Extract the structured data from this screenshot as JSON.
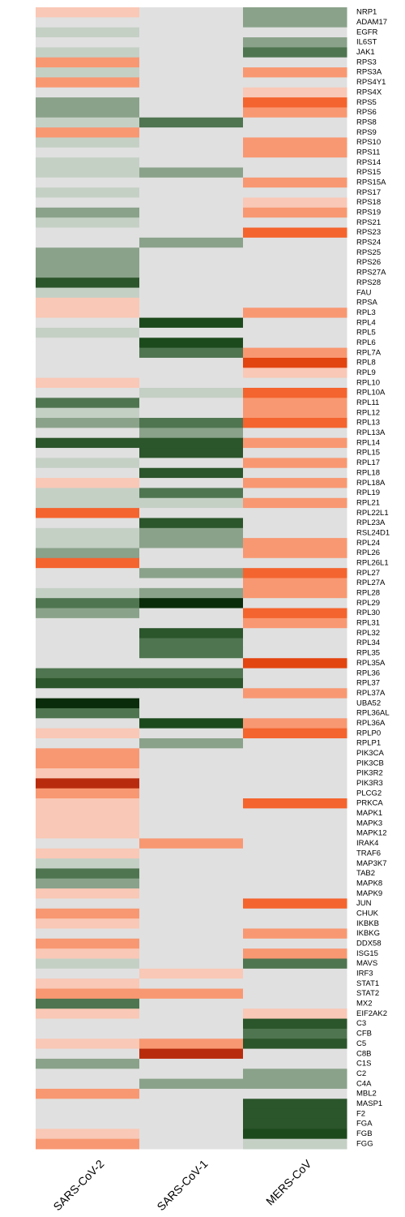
{
  "chart_data": {
    "type": "heatmap",
    "columns": [
      "SARS-CoV-2",
      "SARS-CoV-1",
      "MERS-CoV"
    ],
    "levels": {
      "-5": "#0a2c0a",
      "-4": "#1d4a1d",
      "-3": "#2b552b",
      "-2": "#4f7550",
      "-1": "#8aa28a",
      "-0.5": "#c5d0c5",
      "0": "#e0e0e0",
      "0.5": "#f9c8b6",
      "1": "#f89872",
      "2": "#f4642e",
      "3": "#e24510",
      "4": "#b82c0d"
    },
    "rows": [
      {
        "gene": "NRP1",
        "values": [
          0.5,
          0,
          -1
        ]
      },
      {
        "gene": "ADAM17",
        "values": [
          0,
          0,
          -1
        ]
      },
      {
        "gene": "EGFR",
        "values": [
          -0.5,
          0,
          0
        ]
      },
      {
        "gene": "IL6ST",
        "values": [
          0,
          0,
          -1
        ]
      },
      {
        "gene": "JAK1",
        "values": [
          -0.5,
          0,
          -2
        ]
      },
      {
        "gene": "RPS3",
        "values": [
          1,
          0,
          0
        ]
      },
      {
        "gene": "RPS3A",
        "values": [
          -0.5,
          0,
          1
        ]
      },
      {
        "gene": "RPS4Y1",
        "values": [
          1,
          0,
          0
        ]
      },
      {
        "gene": "RPS4X",
        "values": [
          0,
          0,
          0.5
        ]
      },
      {
        "gene": "RPS5",
        "values": [
          -1,
          0,
          2
        ]
      },
      {
        "gene": "RPS6",
        "values": [
          -1,
          0,
          1
        ]
      },
      {
        "gene": "RPS8",
        "values": [
          -0.5,
          -2,
          0
        ]
      },
      {
        "gene": "RPS9",
        "values": [
          1,
          0,
          0
        ]
      },
      {
        "gene": "RPS10",
        "values": [
          -0.5,
          0,
          1
        ]
      },
      {
        "gene": "RPS11",
        "values": [
          0,
          0,
          1
        ]
      },
      {
        "gene": "RPS14",
        "values": [
          -0.5,
          0,
          0
        ]
      },
      {
        "gene": "RPS15",
        "values": [
          -0.5,
          -1,
          0
        ]
      },
      {
        "gene": "RPS15A",
        "values": [
          0,
          0,
          1
        ]
      },
      {
        "gene": "RPS17",
        "values": [
          -0.5,
          0,
          0
        ]
      },
      {
        "gene": "RPS18",
        "values": [
          0,
          0,
          0.5
        ]
      },
      {
        "gene": "RPS19",
        "values": [
          -1,
          0,
          1
        ]
      },
      {
        "gene": "RPS21",
        "values": [
          -0.5,
          0,
          0
        ]
      },
      {
        "gene": "RPS23",
        "values": [
          0,
          0,
          2
        ]
      },
      {
        "gene": "RPS24",
        "values": [
          0,
          -1,
          0
        ]
      },
      {
        "gene": "RPS25",
        "values": [
          -1,
          0,
          0
        ]
      },
      {
        "gene": "RPS26",
        "values": [
          -1,
          0,
          0
        ]
      },
      {
        "gene": "RPS27A",
        "values": [
          -1,
          0,
          0
        ]
      },
      {
        "gene": "RPS28",
        "values": [
          -3,
          0,
          0
        ]
      },
      {
        "gene": "FAU",
        "values": [
          -0.5,
          0,
          0
        ]
      },
      {
        "gene": "RPSA",
        "values": [
          0.5,
          0,
          0
        ]
      },
      {
        "gene": "RPL3",
        "values": [
          0.5,
          0,
          1
        ]
      },
      {
        "gene": "RPL4",
        "values": [
          0,
          -4,
          0
        ]
      },
      {
        "gene": "RPL5",
        "values": [
          -0.5,
          0,
          0
        ]
      },
      {
        "gene": "RPL6",
        "values": [
          0,
          -4,
          0
        ]
      },
      {
        "gene": "RPL7A",
        "values": [
          0,
          -2,
          1
        ]
      },
      {
        "gene": "RPL8",
        "values": [
          0,
          0,
          3
        ]
      },
      {
        "gene": "RPL9",
        "values": [
          0,
          0,
          0.5
        ]
      },
      {
        "gene": "RPL10",
        "values": [
          0.5,
          0,
          0
        ]
      },
      {
        "gene": "RPL10A",
        "values": [
          0,
          -0.5,
          2
        ]
      },
      {
        "gene": "RPL11",
        "values": [
          -2,
          0,
          1
        ]
      },
      {
        "gene": "RPL12",
        "values": [
          -0.5,
          0,
          1
        ]
      },
      {
        "gene": "RPL13",
        "values": [
          -1,
          -2,
          2
        ]
      },
      {
        "gene": "RPL13A",
        "values": [
          0,
          -1,
          0
        ]
      },
      {
        "gene": "RPL14",
        "values": [
          -3,
          -3,
          1
        ]
      },
      {
        "gene": "RPL15",
        "values": [
          0,
          -3,
          0
        ]
      },
      {
        "gene": "RPL17",
        "values": [
          -0.5,
          0,
          1
        ]
      },
      {
        "gene": "RPL18",
        "values": [
          0,
          -3,
          0
        ]
      },
      {
        "gene": "RPL18A",
        "values": [
          0.5,
          0,
          1
        ]
      },
      {
        "gene": "RPL19",
        "values": [
          -0.5,
          -2,
          0
        ]
      },
      {
        "gene": "RPL21",
        "values": [
          -0.5,
          -0.5,
          1
        ]
      },
      {
        "gene": "RPL22L1",
        "values": [
          2,
          0,
          0
        ]
      },
      {
        "gene": "RPL23A",
        "values": [
          0,
          -3,
          0
        ]
      },
      {
        "gene": "RSL24D1",
        "values": [
          -0.5,
          -1,
          0
        ]
      },
      {
        "gene": "RPL24",
        "values": [
          -0.5,
          -1,
          1
        ]
      },
      {
        "gene": "RPL26",
        "values": [
          -1,
          0,
          1
        ]
      },
      {
        "gene": "RPL26L1",
        "values": [
          2,
          0,
          0
        ]
      },
      {
        "gene": "RPL27",
        "values": [
          0,
          -1,
          2
        ]
      },
      {
        "gene": "RPL27A",
        "values": [
          0,
          0,
          1
        ]
      },
      {
        "gene": "RPL28",
        "values": [
          -0.5,
          -1,
          1
        ]
      },
      {
        "gene": "RPL29",
        "values": [
          -2,
          -5,
          0
        ]
      },
      {
        "gene": "RPL30",
        "values": [
          -1,
          0,
          2
        ]
      },
      {
        "gene": "RPL31",
        "values": [
          0,
          0,
          1
        ]
      },
      {
        "gene": "RPL32",
        "values": [
          0,
          -3,
          0
        ]
      },
      {
        "gene": "RPL34",
        "values": [
          0,
          -2,
          0
        ]
      },
      {
        "gene": "RPL35",
        "values": [
          0,
          -2,
          0
        ]
      },
      {
        "gene": "RPL35A",
        "values": [
          0,
          0,
          3
        ]
      },
      {
        "gene": "RPL36",
        "values": [
          -2,
          -2,
          0
        ]
      },
      {
        "gene": "RPL37",
        "values": [
          -3,
          -3,
          0
        ]
      },
      {
        "gene": "RPL37A",
        "values": [
          0,
          0,
          1
        ]
      },
      {
        "gene": "UBA52",
        "values": [
          -5,
          0,
          0
        ]
      },
      {
        "gene": "RPL36AL",
        "values": [
          -2,
          0,
          0
        ]
      },
      {
        "gene": "RPL36A",
        "values": [
          0,
          -4,
          1
        ]
      },
      {
        "gene": "RPLP0",
        "values": [
          0.5,
          0,
          2
        ]
      },
      {
        "gene": "RPLP1",
        "values": [
          0,
          -1,
          0
        ]
      },
      {
        "gene": "PIK3CA",
        "values": [
          1,
          0,
          0
        ]
      },
      {
        "gene": "PIK3CB",
        "values": [
          1,
          0,
          0
        ]
      },
      {
        "gene": "PIK3R2",
        "values": [
          0.5,
          0,
          0
        ]
      },
      {
        "gene": "PIK3R3",
        "values": [
          4,
          0,
          0
        ]
      },
      {
        "gene": "PLCG2",
        "values": [
          1,
          0,
          0
        ]
      },
      {
        "gene": "PRKCA",
        "values": [
          0.5,
          0,
          2
        ]
      },
      {
        "gene": "MAPK1",
        "values": [
          0.5,
          0,
          0
        ]
      },
      {
        "gene": "MAPK3",
        "values": [
          0.5,
          0,
          0
        ]
      },
      {
        "gene": "MAPK12",
        "values": [
          0.5,
          0,
          0
        ]
      },
      {
        "gene": "IRAK4",
        "values": [
          0,
          1,
          0
        ]
      },
      {
        "gene": "TRAF6",
        "values": [
          0.5,
          0,
          0
        ]
      },
      {
        "gene": "MAP3K7",
        "values": [
          -0.5,
          0,
          0
        ]
      },
      {
        "gene": "TAB2",
        "values": [
          -2,
          0,
          0
        ]
      },
      {
        "gene": "MAPK8",
        "values": [
          -1,
          0,
          0
        ]
      },
      {
        "gene": "MAPK9",
        "values": [
          0.5,
          0,
          0
        ]
      },
      {
        "gene": "JUN",
        "values": [
          0,
          0,
          2
        ]
      },
      {
        "gene": "CHUK",
        "values": [
          1,
          0,
          0
        ]
      },
      {
        "gene": "IKBKB",
        "values": [
          0.5,
          0,
          0
        ]
      },
      {
        "gene": "IKBKG",
        "values": [
          0,
          0,
          1
        ]
      },
      {
        "gene": "DDX58",
        "values": [
          1,
          0,
          0
        ]
      },
      {
        "gene": "ISG15",
        "values": [
          0.5,
          0,
          1
        ]
      },
      {
        "gene": "MAVS",
        "values": [
          -0.5,
          0,
          -2
        ]
      },
      {
        "gene": "IRF3",
        "values": [
          0,
          0.5,
          0
        ]
      },
      {
        "gene": "STAT1",
        "values": [
          0.5,
          0,
          0
        ]
      },
      {
        "gene": "STAT2",
        "values": [
          1,
          1,
          0
        ]
      },
      {
        "gene": "MX2",
        "values": [
          -2,
          0,
          0
        ]
      },
      {
        "gene": "EIF2AK2",
        "values": [
          0.5,
          0,
          0.5
        ]
      },
      {
        "gene": "C3",
        "values": [
          0,
          0,
          -3
        ]
      },
      {
        "gene": "CFB",
        "values": [
          0,
          0,
          -2
        ]
      },
      {
        "gene": "C5",
        "values": [
          0.5,
          1,
          -3
        ]
      },
      {
        "gene": "C8B",
        "values": [
          0,
          4,
          0
        ]
      },
      {
        "gene": "C1S",
        "values": [
          -1,
          0,
          0
        ]
      },
      {
        "gene": "C2",
        "values": [
          0,
          0,
          -1
        ]
      },
      {
        "gene": "C4A",
        "values": [
          0,
          -1,
          -1
        ]
      },
      {
        "gene": "MBL2",
        "values": [
          1,
          0,
          0
        ]
      },
      {
        "gene": "MASP1",
        "values": [
          0,
          0,
          -3
        ]
      },
      {
        "gene": "F2",
        "values": [
          0,
          0,
          -3
        ]
      },
      {
        "gene": "FGA",
        "values": [
          0,
          0,
          -3
        ]
      },
      {
        "gene": "FGB",
        "values": [
          0.5,
          0,
          -4
        ]
      },
      {
        "gene": "FGG",
        "values": [
          1,
          0,
          -0.5
        ]
      }
    ]
  }
}
